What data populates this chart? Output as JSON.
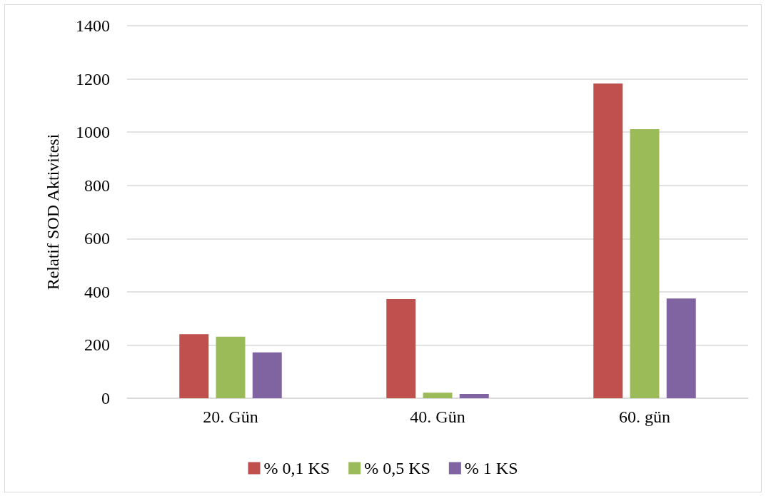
{
  "chart_data": {
    "type": "bar",
    "ylabel": "Relatif SOD Aktivitesi",
    "categories": [
      "20. Gün",
      "40. Gün",
      "60. gün"
    ],
    "series": [
      {
        "name": "% 0,1 KS",
        "color": "#c0504d",
        "values": [
          241,
          373,
          1183
        ]
      },
      {
        "name": "% 0,5 KS",
        "color": "#9bbb59",
        "values": [
          231,
          21,
          1011
        ]
      },
      {
        "name": "% 1 KS",
        "color": "#8064a2",
        "values": [
          172,
          16,
          375
        ]
      }
    ],
    "ylim": [
      0,
      1400
    ],
    "yticks": [
      0,
      200,
      400,
      600,
      800,
      1000,
      1200,
      1400
    ],
    "grid": "y",
    "legend": "bottom"
  }
}
